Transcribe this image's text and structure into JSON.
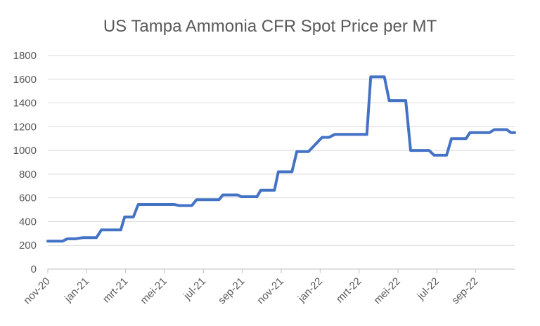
{
  "chart_data": {
    "type": "line",
    "title": "US Tampa Ammonia CFR Spot Price per MT",
    "xlabel": "",
    "ylabel": "",
    "ylim": [
      0,
      1800
    ],
    "yticks": [
      0,
      200,
      400,
      600,
      800,
      1000,
      1200,
      1400,
      1600,
      1800
    ],
    "grid": true,
    "legend": "none",
    "x_categories": [
      "nov-20",
      "jan-21",
      "mrt-21",
      "mei-21",
      "jul-21",
      "sep-21",
      "nov-21",
      "jan-22",
      "mrt-22",
      "mei-22",
      "jul-22",
      "sep-22"
    ],
    "x_domain": [
      0,
      24
    ],
    "series": [
      {
        "color": "#4472c4",
        "points": [
          {
            "x": 0,
            "y": 235
          },
          {
            "x": 0.75,
            "y": 235
          },
          {
            "x": 1.0,
            "y": 255
          },
          {
            "x": 1.4,
            "y": 255
          },
          {
            "x": 1.8,
            "y": 265
          },
          {
            "x": 2.5,
            "y": 265
          },
          {
            "x": 2.75,
            "y": 330
          },
          {
            "x": 3.75,
            "y": 330
          },
          {
            "x": 3.95,
            "y": 440
          },
          {
            "x": 4.4,
            "y": 440
          },
          {
            "x": 4.65,
            "y": 545
          },
          {
            "x": 6.5,
            "y": 545
          },
          {
            "x": 6.75,
            "y": 535
          },
          {
            "x": 7.4,
            "y": 535
          },
          {
            "x": 7.65,
            "y": 585
          },
          {
            "x": 8.8,
            "y": 585
          },
          {
            "x": 9.0,
            "y": 625
          },
          {
            "x": 9.75,
            "y": 625
          },
          {
            "x": 9.95,
            "y": 610
          },
          {
            "x": 10.75,
            "y": 610
          },
          {
            "x": 10.95,
            "y": 665
          },
          {
            "x": 11.65,
            "y": 665
          },
          {
            "x": 11.85,
            "y": 820
          },
          {
            "x": 12.55,
            "y": 820
          },
          {
            "x": 12.8,
            "y": 990
          },
          {
            "x": 13.4,
            "y": 990
          },
          {
            "x": 14.1,
            "y": 1110
          },
          {
            "x": 14.45,
            "y": 1110
          },
          {
            "x": 14.75,
            "y": 1135
          },
          {
            "x": 16.4,
            "y": 1135
          },
          {
            "x": 16.6,
            "y": 1620
          },
          {
            "x": 17.3,
            "y": 1620
          },
          {
            "x": 17.55,
            "y": 1420
          },
          {
            "x": 18.4,
            "y": 1420
          },
          {
            "x": 18.65,
            "y": 1000
          },
          {
            "x": 19.6,
            "y": 1000
          },
          {
            "x": 19.85,
            "y": 960
          },
          {
            "x": 20.5,
            "y": 960
          },
          {
            "x": 20.75,
            "y": 1100
          },
          {
            "x": 21.5,
            "y": 1100
          },
          {
            "x": 21.7,
            "y": 1150
          },
          {
            "x": 22.7,
            "y": 1150
          },
          {
            "x": 22.95,
            "y": 1175
          },
          {
            "x": 23.6,
            "y": 1175
          },
          {
            "x": 23.8,
            "y": 1150
          },
          {
            "x": 24.0,
            "y": 1150
          }
        ]
      }
    ]
  }
}
